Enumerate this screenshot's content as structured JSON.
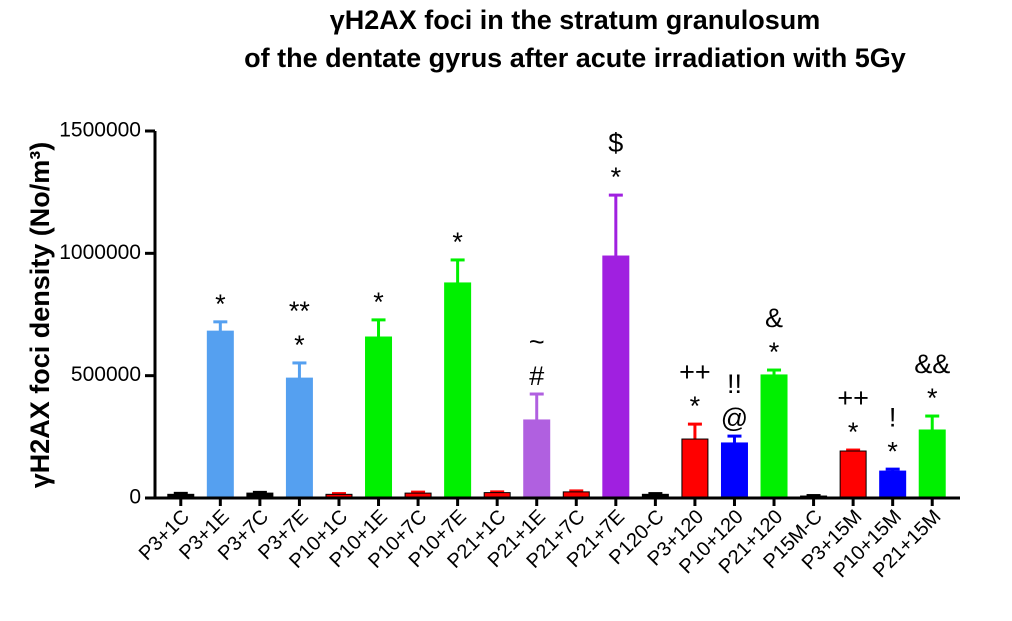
{
  "chart_data": {
    "type": "bar",
    "title": [
      "γH2AX foci in the stratum granulosum",
      "of the dentate gyrus after acute irradiation with 5Gy"
    ],
    "y_label": "γH2AX foci density (No/m³)",
    "categories": [
      "P3+1C",
      "P3+1E",
      "P3+7C",
      "P3+7E",
      "P10+1C",
      "P10+1E",
      "P10+7C",
      "P10+7E",
      "P21+1C",
      "P21+1E",
      "P21+7C",
      "P21+7E",
      "P120-C",
      "P3+120",
      "P10+120",
      "P21+120",
      "P15M-C",
      "P3+15M",
      "P10+15M",
      "P21+15M"
    ],
    "values": [
      15000,
      682000,
      20000,
      490000,
      15000,
      658000,
      20000,
      879000,
      22000,
      319000,
      25000,
      989000,
      15000,
      241000,
      225000,
      503000,
      8000,
      192000,
      110000,
      278000
    ],
    "errors": [
      4000,
      38000,
      3000,
      62000,
      3000,
      70000,
      4000,
      94000,
      3000,
      106000,
      4000,
      249000,
      3000,
      61000,
      28000,
      20000,
      2000,
      4000,
      8000,
      57000
    ],
    "colors": [
      "#000000",
      "#55a0f0",
      "#000000",
      "#55a0f0",
      "#ff0000",
      "#00f000",
      "#ff0000",
      "#00f000",
      "#ff0000",
      "#b060e0",
      "#ff0000",
      "#a020e0",
      "#000000",
      "#ff0000",
      "#0000ff",
      "#00f000",
      "#000000",
      "#ff0000",
      "#0000ff",
      "#00f000"
    ],
    "annotations": [
      {
        "category": "P3+1E",
        "labels": [
          "*"
        ]
      },
      {
        "category": "P3+7E",
        "labels": [
          "**",
          "*"
        ]
      },
      {
        "category": "P10+1E",
        "labels": [
          "*"
        ]
      },
      {
        "category": "P10+7E",
        "labels": [
          "*"
        ]
      },
      {
        "category": "P21+1E",
        "labels": [
          "~",
          "#"
        ]
      },
      {
        "category": "P21+7E",
        "labels": [
          "$",
          "*"
        ]
      },
      {
        "category": "P3+120",
        "labels": [
          "++",
          "*"
        ]
      },
      {
        "category": "P10+120",
        "labels": [
          "!!",
          "@"
        ]
      },
      {
        "category": "P21+120",
        "labels": [
          "&",
          "*"
        ]
      },
      {
        "category": "P3+15M",
        "labels": [
          "++",
          "*"
        ]
      },
      {
        "category": "P10+15M",
        "labels": [
          "!",
          "*"
        ]
      },
      {
        "category": "P21+15M",
        "labels": [
          "&&",
          "*"
        ]
      }
    ],
    "ylim": [
      0,
      1500000
    ],
    "yticks": [
      0,
      500000,
      1000000,
      1500000
    ]
  }
}
